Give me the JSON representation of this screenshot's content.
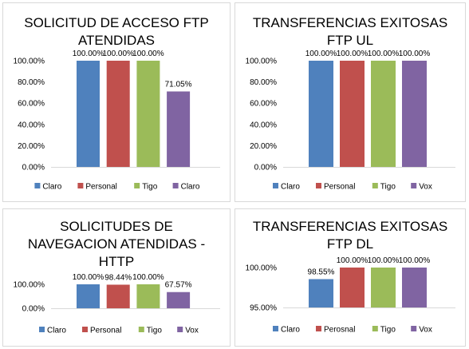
{
  "colors": {
    "blue": "#4f81bd",
    "red": "#c0504d",
    "green": "#9bbb59",
    "purple": "#8064a2"
  },
  "chart_data": [
    {
      "type": "bar",
      "title_lines": [
        "SOLICITUD DE ACCESO FTP",
        "ATENDIDAS"
      ],
      "categories": [
        "Claro",
        "Personal",
        "Tigo",
        "Claro"
      ],
      "values": [
        100.0,
        100.0,
        100.0,
        71.05
      ],
      "value_labels": [
        "100.00%",
        "100.00%",
        "100.00%",
        "71.05%"
      ],
      "yticks": [
        "100.00%",
        "80.00%",
        "60.00%",
        "40.00%",
        "20.00%",
        "0.00%"
      ],
      "ylim": [
        0,
        100
      ],
      "legend_position": "bottom"
    },
    {
      "type": "bar",
      "title_lines": [
        "TRANSFERENCIAS EXITOSAS",
        "FTP UL"
      ],
      "categories": [
        "Claro",
        "Personal",
        "Tigo",
        "Vox"
      ],
      "values": [
        100.0,
        100.0,
        100.0,
        100.0
      ],
      "value_labels": [
        "100.00%",
        "100.00%",
        "100.00%",
        "100.00%"
      ],
      "yticks": [
        "100.00%",
        "80.00%",
        "60.00%",
        "40.00%",
        "20.00%",
        "0.00%"
      ],
      "ylim": [
        0,
        100
      ],
      "legend_position": "bottom"
    },
    {
      "type": "bar",
      "title_lines": [
        "SOLICITUDES DE",
        "NAVEGACION ATENDIDAS -",
        "HTTP"
      ],
      "categories": [
        "Claro",
        "Personal",
        "Tigo",
        "Vox"
      ],
      "values": [
        100.0,
        98.44,
        100.0,
        67.57
      ],
      "value_labels": [
        "100.00%",
        "98.44%",
        "100.00%",
        "67.57%"
      ],
      "yticks": [
        "100.00%",
        "0.00%"
      ],
      "ylim": [
        0,
        100
      ],
      "legend_position": "bottom"
    },
    {
      "type": "bar",
      "title_lines": [
        "TRANSFERENCIAS EXITOSAS",
        "FTP DL"
      ],
      "categories": [
        "Claro",
        "Perosnal",
        "Tigo",
        "Vox"
      ],
      "values": [
        98.55,
        100.0,
        100.0,
        100.0
      ],
      "value_labels": [
        "98.55%",
        "100.00%",
        "100.00%",
        "100.00%"
      ],
      "yticks": [
        "100.00%",
        "95.00%"
      ],
      "ylim": [
        95,
        100
      ],
      "legend_position": "bottom"
    }
  ]
}
